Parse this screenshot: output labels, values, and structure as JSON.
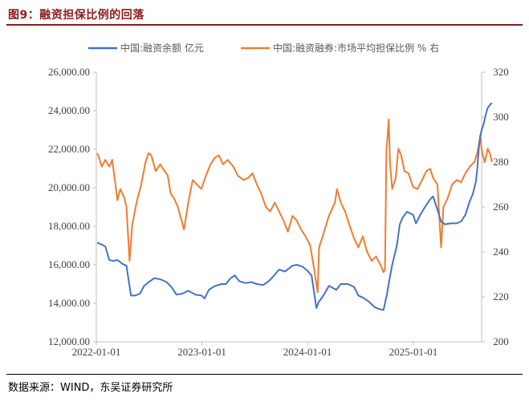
{
  "figure": {
    "title": "图9：融资担保比例的回落",
    "source": "数据来源：WIND，东吴证券研究所"
  },
  "colors": {
    "left_series": "#4472c4",
    "right_series": "#ed7d31",
    "axis": "#bfbfbf",
    "title": "#8b1a1a"
  },
  "chart_data": {
    "type": "line",
    "title": "",
    "legend_position": "top-center",
    "grid": false,
    "x_axis": {
      "type": "date",
      "range": [
        "2022-01-01",
        "2025-08-25"
      ],
      "ticks": [
        "2022-01-01",
        "2023-01-01",
        "2024-01-01",
        "2025-01-01"
      ]
    },
    "y_left": {
      "range": [
        12000,
        26000
      ],
      "ticks": [
        "12,000.00",
        "14,000.00",
        "16,000.00",
        "18,000.00",
        "20,000.00",
        "22,000.00",
        "24,000.00",
        "26,000.00"
      ]
    },
    "y_right": {
      "range": [
        200,
        320
      ],
      "ticks": [
        "200",
        "220",
        "240",
        "260",
        "280",
        "300",
        "320"
      ]
    },
    "series": [
      {
        "name": "中国:融资余额 亿元",
        "axis": "left",
        "points": [
          [
            "2022-01-04",
            17150
          ],
          [
            "2022-01-20",
            17050
          ],
          [
            "2022-02-01",
            16950
          ],
          [
            "2022-02-15",
            16250
          ],
          [
            "2022-03-01",
            16200
          ],
          [
            "2022-03-15",
            16250
          ],
          [
            "2022-04-01",
            16050
          ],
          [
            "2022-04-15",
            15950
          ],
          [
            "2022-05-01",
            14400
          ],
          [
            "2022-05-15",
            14400
          ],
          [
            "2022-06-01",
            14500
          ],
          [
            "2022-06-15",
            14900
          ],
          [
            "2022-07-01",
            15100
          ],
          [
            "2022-07-20",
            15300
          ],
          [
            "2022-08-10",
            15250
          ],
          [
            "2022-09-01",
            15100
          ],
          [
            "2022-09-20",
            14800
          ],
          [
            "2022-10-05",
            14450
          ],
          [
            "2022-10-25",
            14500
          ],
          [
            "2022-11-15",
            14650
          ],
          [
            "2022-12-10",
            14450
          ],
          [
            "2022-12-31",
            14400
          ],
          [
            "2023-01-10",
            14250
          ],
          [
            "2023-01-25",
            14700
          ],
          [
            "2023-02-15",
            14900
          ],
          [
            "2023-03-10",
            15000
          ],
          [
            "2023-03-25",
            15000
          ],
          [
            "2023-04-10",
            15300
          ],
          [
            "2023-04-25",
            15450
          ],
          [
            "2023-05-10",
            15150
          ],
          [
            "2023-06-01",
            15050
          ],
          [
            "2023-06-20",
            15100
          ],
          [
            "2023-07-10",
            15000
          ],
          [
            "2023-08-01",
            14950
          ],
          [
            "2023-08-20",
            15150
          ],
          [
            "2023-09-05",
            15400
          ],
          [
            "2023-09-25",
            15750
          ],
          [
            "2023-10-15",
            15650
          ],
          [
            "2023-11-10",
            15950
          ],
          [
            "2023-11-25",
            16000
          ],
          [
            "2023-12-15",
            15900
          ],
          [
            "2023-12-31",
            15700
          ],
          [
            "2024-01-15",
            15450
          ],
          [
            "2024-02-01",
            13750
          ],
          [
            "2024-02-08",
            14050
          ],
          [
            "2024-02-25",
            14400
          ],
          [
            "2024-03-15",
            14900
          ],
          [
            "2024-04-10",
            14700
          ],
          [
            "2024-04-25",
            15000
          ],
          [
            "2024-05-20",
            15000
          ],
          [
            "2024-06-10",
            14850
          ],
          [
            "2024-06-25",
            14400
          ],
          [
            "2024-07-10",
            14300
          ],
          [
            "2024-07-30",
            14100
          ],
          [
            "2024-08-20",
            13800
          ],
          [
            "2024-09-05",
            13700
          ],
          [
            "2024-09-20",
            13650
          ],
          [
            "2024-09-26",
            14100
          ],
          [
            "2024-10-01",
            14400
          ],
          [
            "2024-10-10",
            15200
          ],
          [
            "2024-10-20",
            16000
          ],
          [
            "2024-11-05",
            17000
          ],
          [
            "2024-11-15",
            18100
          ],
          [
            "2024-11-25",
            18450
          ],
          [
            "2024-12-10",
            18750
          ],
          [
            "2024-12-31",
            18600
          ],
          [
            "2025-01-10",
            18150
          ],
          [
            "2025-01-25",
            18600
          ],
          [
            "2025-02-10",
            19000
          ],
          [
            "2025-02-28",
            19400
          ],
          [
            "2025-03-10",
            19550
          ],
          [
            "2025-03-20",
            19100
          ],
          [
            "2025-04-07",
            18250
          ],
          [
            "2025-04-20",
            18100
          ],
          [
            "2025-05-10",
            18150
          ],
          [
            "2025-05-30",
            18150
          ],
          [
            "2025-06-15",
            18250
          ],
          [
            "2025-06-30",
            18600
          ],
          [
            "2025-07-15",
            19300
          ],
          [
            "2025-07-25",
            19650
          ],
          [
            "2025-08-05",
            20300
          ],
          [
            "2025-08-10",
            21000
          ],
          [
            "2025-08-15",
            22000
          ],
          [
            "2025-08-20",
            22700
          ],
          [
            "2025-08-25",
            23000
          ],
          [
            "2025-09-01",
            23300
          ],
          [
            "2025-09-05",
            23600
          ],
          [
            "2025-09-10",
            23900
          ],
          [
            "2025-09-15",
            24150
          ],
          [
            "2025-09-20",
            24250
          ],
          [
            "2025-09-25",
            24350
          ],
          [
            "2025-09-30",
            24400
          ]
        ]
      },
      {
        "name": "中国:融资融券:市场平均担保比例 % 右",
        "axis": "right",
        "points": [
          [
            "2022-01-04",
            284
          ],
          [
            "2022-01-10",
            282
          ],
          [
            "2022-01-20",
            278
          ],
          [
            "2022-02-01",
            281
          ],
          [
            "2022-02-15",
            278
          ],
          [
            "2022-02-25",
            281
          ],
          [
            "2022-03-08",
            270
          ],
          [
            "2022-03-15",
            263
          ],
          [
            "2022-03-25",
            268
          ],
          [
            "2022-04-08",
            264
          ],
          [
            "2022-04-15",
            260
          ],
          [
            "2022-04-26",
            236
          ],
          [
            "2022-05-05",
            252
          ],
          [
            "2022-05-20",
            262
          ],
          [
            "2022-06-05",
            270
          ],
          [
            "2022-06-20",
            280
          ],
          [
            "2022-07-01",
            284
          ],
          [
            "2022-07-10",
            283
          ],
          [
            "2022-07-25",
            276
          ],
          [
            "2022-08-10",
            279
          ],
          [
            "2022-08-20",
            277
          ],
          [
            "2022-09-05",
            274
          ],
          [
            "2022-09-15",
            266
          ],
          [
            "2022-09-26",
            264
          ],
          [
            "2022-10-10",
            260
          ],
          [
            "2022-10-31",
            250
          ],
          [
            "2022-11-15",
            262
          ],
          [
            "2022-11-30",
            272
          ],
          [
            "2022-12-15",
            270
          ],
          [
            "2022-12-30",
            268
          ],
          [
            "2023-01-15",
            274
          ],
          [
            "2023-01-31",
            279
          ],
          [
            "2023-02-15",
            282
          ],
          [
            "2023-03-01",
            283
          ],
          [
            "2023-03-15",
            279
          ],
          [
            "2023-03-31",
            281
          ],
          [
            "2023-04-20",
            278
          ],
          [
            "2023-05-05",
            274
          ],
          [
            "2023-05-25",
            272
          ],
          [
            "2023-06-10",
            273
          ],
          [
            "2023-06-25",
            275
          ],
          [
            "2023-07-10",
            270
          ],
          [
            "2023-07-25",
            266
          ],
          [
            "2023-08-10",
            260
          ],
          [
            "2023-08-25",
            258
          ],
          [
            "2023-09-10",
            262
          ],
          [
            "2023-09-25",
            258
          ],
          [
            "2023-10-10",
            254
          ],
          [
            "2023-10-25",
            249
          ],
          [
            "2023-11-10",
            256
          ],
          [
            "2023-11-25",
            254
          ],
          [
            "2023-12-10",
            250
          ],
          [
            "2023-12-25",
            247
          ],
          [
            "2024-01-10",
            243
          ],
          [
            "2024-01-22",
            234
          ],
          [
            "2024-02-05",
            222
          ],
          [
            "2024-02-10",
            242
          ],
          [
            "2024-02-25",
            248
          ],
          [
            "2024-03-15",
            256
          ],
          [
            "2024-04-05",
            262
          ],
          [
            "2024-04-12",
            268
          ],
          [
            "2024-04-25",
            262
          ],
          [
            "2024-05-10",
            258
          ],
          [
            "2024-05-25",
            252
          ],
          [
            "2024-06-10",
            246
          ],
          [
            "2024-06-25",
            242
          ],
          [
            "2024-07-10",
            247
          ],
          [
            "2024-07-25",
            240
          ],
          [
            "2024-08-10",
            236
          ],
          [
            "2024-08-25",
            238
          ],
          [
            "2024-09-10",
            234
          ],
          [
            "2024-09-20",
            231
          ],
          [
            "2024-09-25",
            232
          ],
          [
            "2024-09-30",
            285
          ],
          [
            "2024-10-08",
            299
          ],
          [
            "2024-10-12",
            280
          ],
          [
            "2024-10-20",
            268
          ],
          [
            "2024-11-01",
            273
          ],
          [
            "2024-11-10",
            286
          ],
          [
            "2024-11-20",
            283
          ],
          [
            "2024-12-01",
            276
          ],
          [
            "2024-12-15",
            275
          ],
          [
            "2024-12-31",
            269
          ],
          [
            "2025-01-15",
            268
          ],
          [
            "2025-01-31",
            272
          ],
          [
            "2025-02-15",
            276
          ],
          [
            "2025-02-28",
            277
          ],
          [
            "2025-03-10",
            273
          ],
          [
            "2025-03-25",
            270
          ],
          [
            "2025-04-07",
            242
          ],
          [
            "2025-04-15",
            260
          ],
          [
            "2025-04-30",
            264
          ],
          [
            "2025-05-15",
            270
          ],
          [
            "2025-05-31",
            272
          ],
          [
            "2025-06-15",
            271
          ],
          [
            "2025-06-30",
            275
          ],
          [
            "2025-07-15",
            278
          ],
          [
            "2025-07-31",
            280
          ],
          [
            "2025-08-10",
            284
          ],
          [
            "2025-08-20",
            291
          ],
          [
            "2025-08-27",
            284
          ],
          [
            "2025-09-05",
            280
          ],
          [
            "2025-09-15",
            286
          ],
          [
            "2025-09-22",
            284
          ],
          [
            "2025-09-30",
            280
          ]
        ]
      }
    ]
  }
}
